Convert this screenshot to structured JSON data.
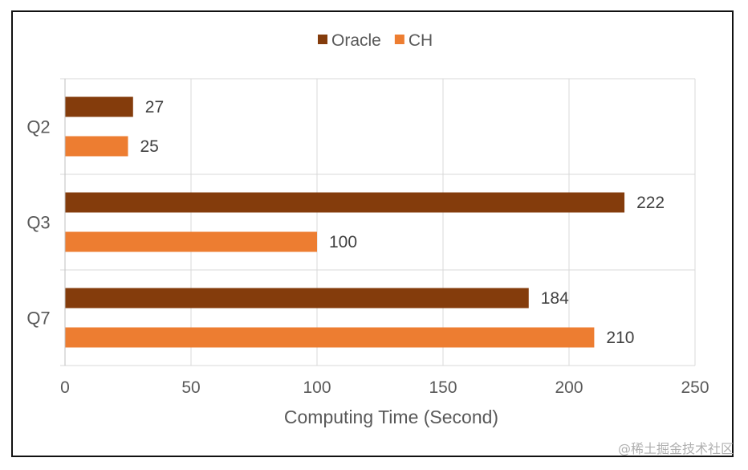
{
  "chart_data": {
    "type": "bar",
    "orientation": "horizontal",
    "categories": [
      "Q2",
      "Q3",
      "Q7"
    ],
    "series": [
      {
        "name": "Oracle",
        "color": "#843C0C",
        "values": [
          27,
          222,
          184
        ]
      },
      {
        "name": "CH",
        "color": "#ED7D31",
        "values": [
          25,
          100,
          210
        ]
      }
    ],
    "xlabel": "Computing Time (Second)",
    "ylabel": "",
    "xlim": [
      0,
      250
    ],
    "xticks": [
      0,
      50,
      100,
      150,
      200,
      250
    ],
    "grid": true,
    "legend_position": "top-center"
  },
  "watermark": "@稀土掘金技术社区"
}
